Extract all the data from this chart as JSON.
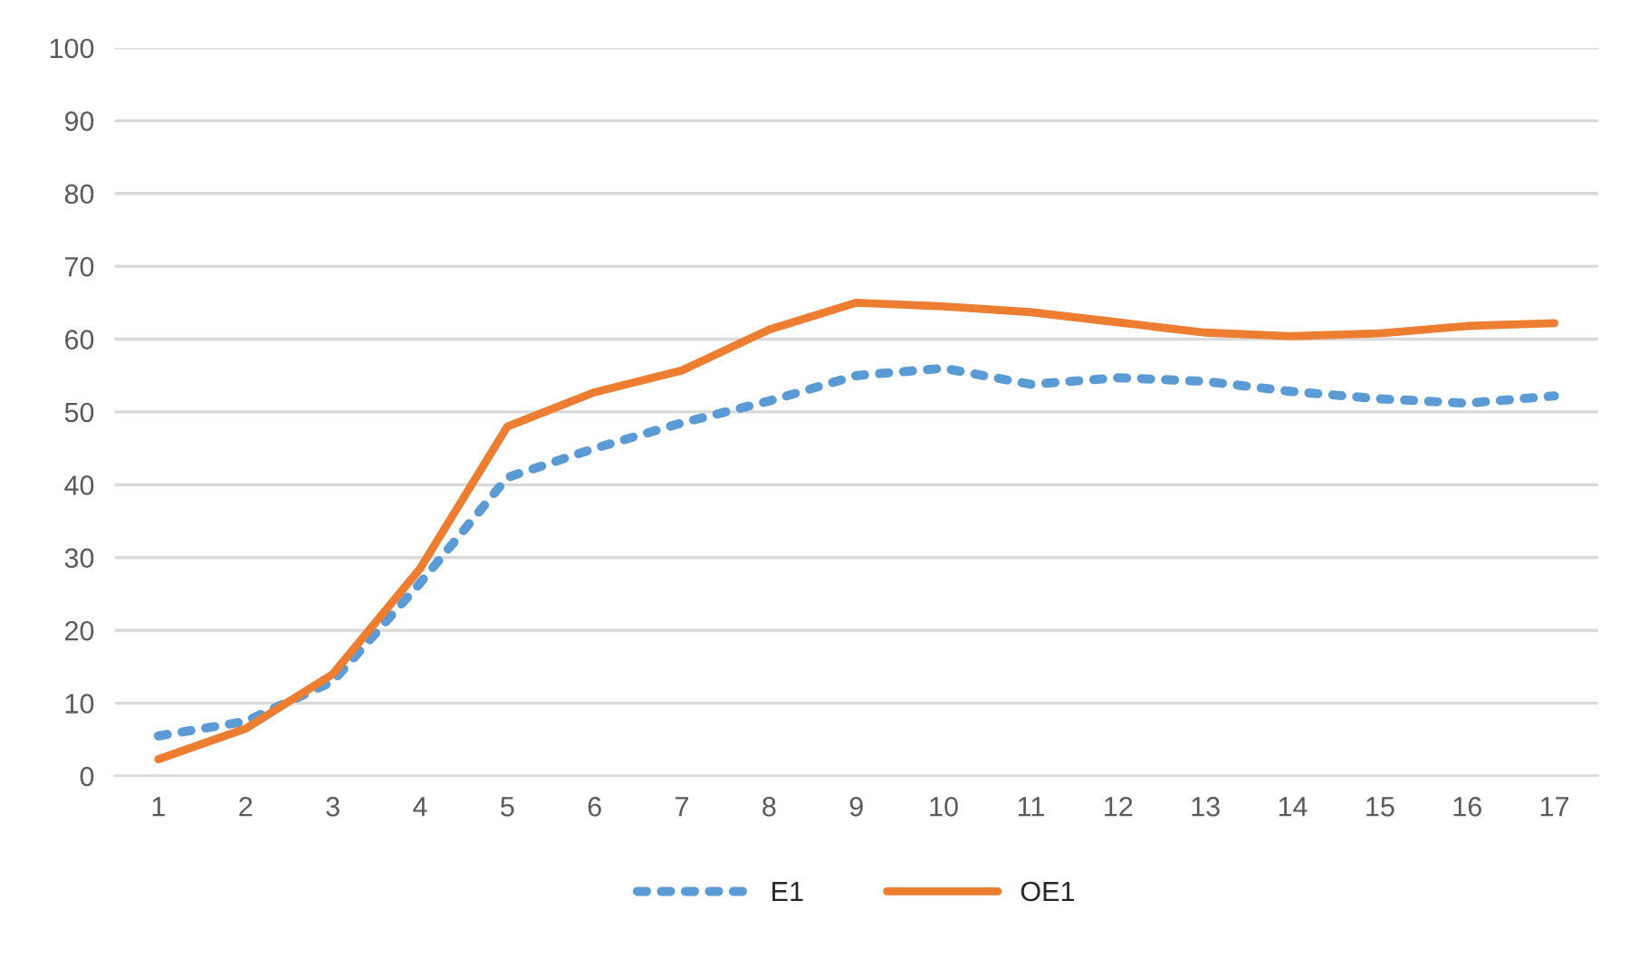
{
  "chart_data": {
    "type": "line",
    "categories": [
      "1",
      "2",
      "3",
      "4",
      "5",
      "6",
      "7",
      "8",
      "9",
      "10",
      "11",
      "12",
      "13",
      "14",
      "15",
      "16",
      "17"
    ],
    "series": [
      {
        "name": "E1",
        "color": "#5b9bd5",
        "line_style": "dotted",
        "values": [
          5.5,
          7.5,
          13,
          26.5,
          41,
          45,
          48.5,
          51.5,
          55,
          56,
          53.8,
          54.7,
          54.2,
          52.8,
          51.8,
          51.2,
          52.2
        ]
      },
      {
        "name": "OE1",
        "color": "#ed7d31",
        "line_style": "solid",
        "values": [
          2.3,
          6.5,
          14,
          28.5,
          48,
          52.7,
          55.7,
          61.3,
          65,
          64.5,
          63.7,
          62.3,
          60.9,
          60.4,
          60.8,
          61.8,
          62.2
        ]
      }
    ],
    "ylim": [
      0,
      100
    ],
    "yticks": [
      0,
      10,
      20,
      30,
      40,
      50,
      60,
      70,
      80,
      90,
      100
    ],
    "grid": "y",
    "legend": "bottom",
    "marker": "none"
  }
}
